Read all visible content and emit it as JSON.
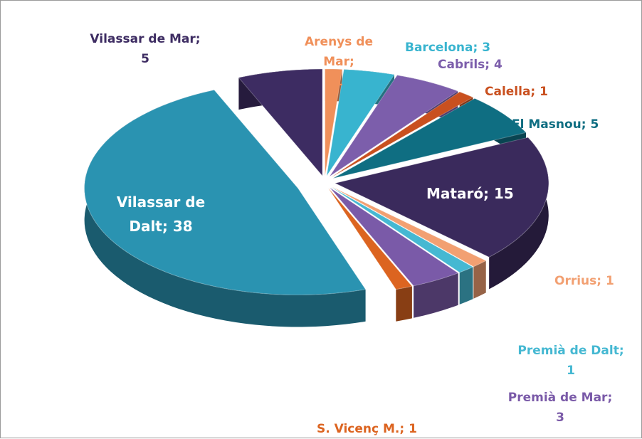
{
  "chart_data": {
    "type": "pie",
    "categories": [
      "Arenys de Mar;\n1",
      "Barcelona; 3",
      "Cabrils; 4",
      "Calella; 1",
      "El Masnou; 5",
      "Mataró; 15",
      "Orrius; 1",
      "Premià de Dalt;\n1",
      "Premià de Mar;\n3",
      "S. Vicenç M.; 1",
      "Vilassar de\nDalt; 38",
      "Vilassar de Mar;\n5"
    ],
    "values": [
      1,
      3,
      4,
      1,
      5,
      15,
      1,
      1,
      3,
      1,
      38,
      5
    ],
    "colors": [
      "#f0905a",
      "#38b4cf",
      "#7c5eab",
      "#c9501f",
      "#0f6e82",
      "#3a2a5c",
      "#f2a072",
      "#45b8d2",
      "#7a5aa8",
      "#dc6420",
      "#2a93b1",
      "#3d2c62"
    ]
  }
}
